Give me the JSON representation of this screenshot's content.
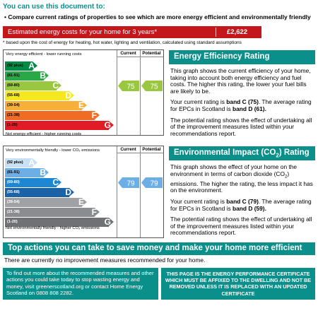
{
  "header": {
    "title": "You can use this document to:",
    "bullet": "Compare current ratings of properties to see which are more energy efficient and environmentally friendly"
  },
  "cost": {
    "label": "Estimated energy costs for your home for 3 years*",
    "value": "£2,622",
    "note": "* based upon the cost of energy for heating, hot water, lighting and ventilation, calculated using standard assumptions"
  },
  "energy_chart": {
    "top_label": "Very energy efficient - lower running costs",
    "bottom_label": "Not energy efficient - higher running costs",
    "col_current": "Current",
    "col_potential": "Potential",
    "bands": [
      {
        "range": "(92 plus)",
        "letter": "A",
        "color": "#008a44",
        "text_color": "#000000"
      },
      {
        "range": "(81-91)",
        "letter": "B",
        "color": "#2aa847",
        "text_color": "#000000"
      },
      {
        "range": "(69-80)",
        "letter": "C",
        "color": "#99c840",
        "text_color": "#000000"
      },
      {
        "range": "(55-68)",
        "letter": "D",
        "color": "#f5e81f",
        "text_color": "#000000"
      },
      {
        "range": "(39-54)",
        "letter": "E",
        "color": "#f6b03a",
        "text_color": "#000000"
      },
      {
        "range": "(21-38)",
        "letter": "F",
        "color": "#f06b26",
        "text_color": "#000000"
      },
      {
        "range": "(1-20)",
        "letter": "G",
        "color": "#e21c27",
        "text_color": "#000000"
      }
    ],
    "current": {
      "value": "75",
      "band_index": 2,
      "color": "#99c840"
    },
    "potential": {
      "value": "75",
      "band_index": 2,
      "color": "#99c840"
    }
  },
  "env_chart": {
    "top_label": "Very environmentally friendly - lower CO₂ emissions",
    "bottom_label": "Not environmentally friendly - higher CO₂ emissions",
    "col_current": "Current",
    "col_potential": "Potential",
    "bands": [
      {
        "range": "(92 plus)",
        "letter": "A",
        "color": "#c8e0f4",
        "text_color": "#000000"
      },
      {
        "range": "(81-91)",
        "letter": "B",
        "color": "#6eaee6",
        "text_color": "#000000"
      },
      {
        "range": "(69-80)",
        "letter": "C",
        "color": "#1d87d4",
        "text_color": "#ffffff"
      },
      {
        "range": "(55-68)",
        "letter": "D",
        "color": "#1b63a6",
        "text_color": "#ffffff"
      },
      {
        "range": "(39-54)",
        "letter": "E",
        "color": "#a0a1a5",
        "text_color": "#ffffff"
      },
      {
        "range": "(21-38)",
        "letter": "F",
        "color": "#8a8c90",
        "text_color": "#ffffff"
      },
      {
        "range": "(1-20)",
        "letter": "G",
        "color": "#6f7175",
        "text_color": "#ffffff"
      }
    ],
    "current": {
      "value": "79",
      "band_index": 2,
      "color": "#6eaee6"
    },
    "potential": {
      "value": "79",
      "band_index": 2,
      "color": "#6eaee6"
    }
  },
  "energy_panel": {
    "title": "Energy Efficiency Rating",
    "p1": "This graph shows the current efficiency of your home, taking into account both energy efficiency and fuel costs. The higher this rating, the lower your fuel bills are likely to be.",
    "p2_pre": "Your current rating is ",
    "p2_bold": "band C (75)",
    "p2_post": ". The average rating for EPCs in Scotland is ",
    "p2_bold2": "band D (61).",
    "p3": "The potential rating shows the effect of undertaking all of the improvement measures listed within your recommendations report."
  },
  "env_panel": {
    "title_pre": "Environmental Impact (CO",
    "title_sub": "2",
    "title_post": ") Rating",
    "p1_pre": "This graph shows the effect of your home on the environment in terms of carbon dioxide (CO",
    "p1_sub": "2",
    "p1_post": ") emissions. The higher the rating, the less impact it has on the environment.",
    "p2_pre": "Your current rating is ",
    "p2_bold": "band C (79)",
    "p2_post": ". The average rating for EPCs in Scotland is ",
    "p2_bold2": "band D (59).",
    "p3": "The potential rating shows the effect of undertaking all of the improvement measures listed within your recommendations report."
  },
  "actions": {
    "title": "Top actions you can take to save money and make your home more efficient",
    "sub": "There are currently no improvement measures recommended for your home."
  },
  "footer": {
    "left": "To find out more about the recommended measures and other actions you could take today to stop wasting energy and money, visit greenerscotland.org or contact Home Energy Scotland on 0808 808 2282.",
    "right": "THIS PAGE IS THE ENERGY PERFORMANCE CERTIFICATE WHICH MUST BE AFFIXED TO THE DWELLING AND NOT BE REMOVED UNLESS IT IS REPLACED WITH AN UPDATED CERTIFICATE"
  },
  "colors": {
    "teal": "#0b8f8b",
    "cost_red": "#c4171c"
  }
}
